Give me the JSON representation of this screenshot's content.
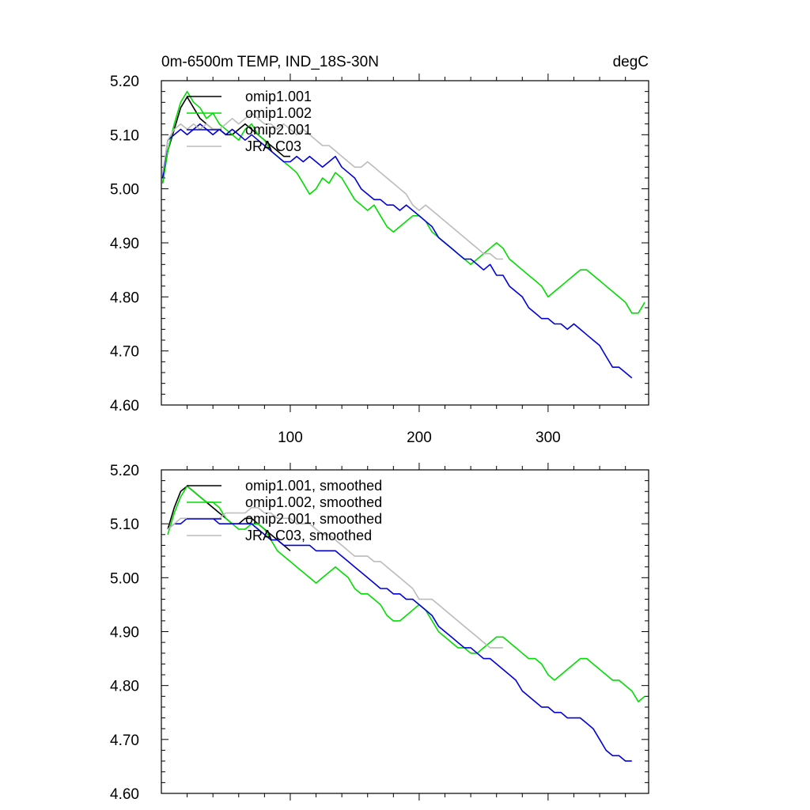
{
  "title": "0m-6500m TEMP, IND_18S-30N",
  "units": "degC",
  "colors": {
    "omip1.001": "#000000",
    "omip1.002": "#00dd00",
    "omip2.001": "#0000dd",
    "JRA C03": "#bbbbbb"
  },
  "chart_data": [
    {
      "type": "line",
      "panel": "top",
      "title": "0m-6500m TEMP, IND_18S-30N",
      "units": "degC",
      "xlim": [
        0,
        378
      ],
      "ylim": [
        4.6,
        5.2
      ],
      "xticks": [
        100,
        200,
        300
      ],
      "xtick_labels": [
        "100",
        "200",
        "300"
      ],
      "yticks": [
        4.6,
        4.7,
        4.8,
        4.9,
        5.0,
        5.1,
        5.2
      ],
      "ytick_labels": [
        "4.60",
        "4.70",
        "4.80",
        "4.90",
        "5.00",
        "5.10",
        "5.20"
      ],
      "legend_position": "top-left",
      "legend": [
        "omip1.001",
        "omip1.002",
        "omip2.001",
        "JRA C03"
      ],
      "series": [
        {
          "name": "omip1.001",
          "color": "#000000",
          "x": [
            1,
            5,
            10,
            15,
            20,
            25,
            30,
            35,
            40,
            45,
            50,
            55,
            60,
            65,
            70,
            75,
            80,
            85,
            90,
            95,
            100
          ],
          "values": [
            5.01,
            5.07,
            5.11,
            5.15,
            5.17,
            5.15,
            5.13,
            5.12,
            5.11,
            5.11,
            5.1,
            5.1,
            5.11,
            5.12,
            5.11,
            5.1,
            5.09,
            5.08,
            5.07,
            5.06,
            5.06
          ]
        },
        {
          "name": "omip1.002",
          "color": "#00dd00",
          "x": [
            1,
            5,
            10,
            15,
            20,
            25,
            30,
            35,
            40,
            45,
            50,
            55,
            60,
            65,
            70,
            75,
            80,
            85,
            90,
            95,
            100,
            105,
            110,
            115,
            120,
            125,
            130,
            135,
            140,
            145,
            150,
            155,
            160,
            165,
            170,
            175,
            180,
            185,
            190,
            195,
            200,
            205,
            210,
            215,
            220,
            225,
            230,
            235,
            240,
            245,
            250,
            255,
            260,
            265,
            270,
            275,
            280,
            285,
            290,
            295,
            300,
            305,
            310,
            315,
            320,
            325,
            330,
            335,
            340,
            345,
            350,
            355,
            360,
            365,
            370,
            375
          ],
          "values": [
            5.01,
            5.07,
            5.12,
            5.16,
            5.18,
            5.16,
            5.15,
            5.13,
            5.14,
            5.12,
            5.11,
            5.1,
            5.09,
            5.11,
            5.12,
            5.1,
            5.09,
            5.07,
            5.06,
            5.05,
            5.04,
            5.03,
            5.01,
            4.99,
            5.0,
            5.02,
            5.01,
            5.03,
            5.02,
            5.0,
            4.98,
            4.97,
            4.96,
            4.97,
            4.95,
            4.93,
            4.92,
            4.93,
            4.94,
            4.95,
            4.95,
            4.94,
            4.92,
            4.91,
            4.9,
            4.89,
            4.88,
            4.87,
            4.86,
            4.87,
            4.88,
            4.89,
            4.9,
            4.89,
            4.87,
            4.86,
            4.85,
            4.84,
            4.83,
            4.82,
            4.8,
            4.81,
            4.82,
            4.83,
            4.84,
            4.85,
            4.85,
            4.84,
            4.83,
            4.82,
            4.81,
            4.8,
            4.79,
            4.77,
            4.77,
            4.79
          ]
        },
        {
          "name": "omip2.001",
          "color": "#0000dd",
          "x": [
            1,
            5,
            10,
            15,
            20,
            25,
            30,
            35,
            40,
            45,
            50,
            55,
            60,
            65,
            70,
            75,
            80,
            85,
            90,
            95,
            100,
            105,
            110,
            115,
            120,
            125,
            130,
            135,
            140,
            145,
            150,
            155,
            160,
            165,
            170,
            175,
            180,
            185,
            190,
            195,
            200,
            205,
            210,
            215,
            220,
            225,
            230,
            235,
            240,
            245,
            250,
            255,
            260,
            265,
            270,
            275,
            280,
            285,
            290,
            295,
            300,
            305,
            310,
            315,
            320,
            325,
            330,
            335,
            340,
            345,
            350,
            355,
            360,
            365
          ],
          "values": [
            5.02,
            5.09,
            5.1,
            5.11,
            5.1,
            5.11,
            5.12,
            5.11,
            5.1,
            5.11,
            5.1,
            5.11,
            5.1,
            5.09,
            5.1,
            5.09,
            5.08,
            5.07,
            5.06,
            5.05,
            5.05,
            5.06,
            5.05,
            5.06,
            5.05,
            5.04,
            5.05,
            5.06,
            5.04,
            5.03,
            5.02,
            5.0,
            4.99,
            4.98,
            4.98,
            4.97,
            4.97,
            4.96,
            4.97,
            4.96,
            4.95,
            4.94,
            4.93,
            4.91,
            4.9,
            4.89,
            4.88,
            4.87,
            4.87,
            4.86,
            4.85,
            4.86,
            4.84,
            4.84,
            4.82,
            4.81,
            4.8,
            4.78,
            4.77,
            4.76,
            4.76,
            4.75,
            4.75,
            4.74,
            4.75,
            4.74,
            4.73,
            4.72,
            4.71,
            4.69,
            4.67,
            4.67,
            4.66,
            4.65
          ]
        },
        {
          "name": "JRA C03",
          "color": "#bbbbbb",
          "x": [
            1,
            5,
            10,
            15,
            20,
            25,
            30,
            35,
            40,
            45,
            50,
            55,
            60,
            65,
            70,
            75,
            80,
            85,
            90,
            95,
            100,
            105,
            110,
            115,
            120,
            125,
            130,
            135,
            140,
            145,
            150,
            155,
            160,
            165,
            170,
            175,
            180,
            185,
            190,
            195,
            200,
            205,
            210,
            215,
            220,
            225,
            230,
            235,
            240,
            245,
            250,
            255,
            260,
            265
          ],
          "values": [
            5.03,
            5.09,
            5.11,
            5.12,
            5.11,
            5.12,
            5.11,
            5.12,
            5.11,
            5.11,
            5.12,
            5.13,
            5.12,
            5.13,
            5.14,
            5.13,
            5.12,
            5.12,
            5.11,
            5.12,
            5.11,
            5.1,
            5.11,
            5.1,
            5.09,
            5.08,
            5.08,
            5.07,
            5.06,
            5.05,
            5.04,
            5.04,
            5.05,
            5.04,
            5.03,
            5.02,
            5.01,
            5.0,
            4.99,
            4.97,
            4.96,
            4.97,
            4.96,
            4.95,
            4.94,
            4.93,
            4.92,
            4.91,
            4.9,
            4.89,
            4.88,
            4.88,
            4.87,
            4.87
          ]
        }
      ]
    },
    {
      "type": "line",
      "panel": "bottom",
      "xlim": [
        0,
        378
      ],
      "ylim": [
        4.6,
        5.2
      ],
      "xticks": [
        100,
        200,
        300
      ],
      "yticks": [
        4.6,
        4.7,
        4.8,
        4.9,
        5.0,
        5.1,
        5.2
      ],
      "ytick_labels": [
        "4.60",
        "4.70",
        "4.80",
        "4.90",
        "5.00",
        "5.10",
        "5.20"
      ],
      "legend_position": "top-left",
      "legend": [
        "omip1.001, smoothed",
        "omip1.002, smoothed",
        "omip2.001, smoothed",
        "JRA C03, smoothed"
      ],
      "series": [
        {
          "name": "omip1.001, smoothed",
          "color": "#000000",
          "x": [
            5,
            10,
            15,
            20,
            25,
            30,
            35,
            40,
            45,
            50,
            55,
            60,
            65,
            70,
            75,
            80,
            85,
            90,
            95,
            100
          ],
          "values": [
            5.09,
            5.13,
            5.16,
            5.17,
            5.16,
            5.15,
            5.14,
            5.13,
            5.12,
            5.11,
            5.1,
            5.1,
            5.11,
            5.11,
            5.1,
            5.09,
            5.08,
            5.07,
            5.06,
            5.05
          ]
        },
        {
          "name": "omip1.002, smoothed",
          "color": "#00dd00",
          "x": [
            5,
            10,
            15,
            20,
            25,
            30,
            35,
            40,
            45,
            50,
            55,
            60,
            65,
            70,
            75,
            80,
            85,
            90,
            95,
            100,
            105,
            110,
            115,
            120,
            125,
            130,
            135,
            140,
            145,
            150,
            155,
            160,
            165,
            170,
            175,
            180,
            185,
            190,
            195,
            200,
            205,
            210,
            215,
            220,
            225,
            230,
            235,
            240,
            245,
            250,
            255,
            260,
            265,
            270,
            275,
            280,
            285,
            290,
            295,
            300,
            305,
            310,
            315,
            320,
            325,
            330,
            335,
            340,
            345,
            350,
            355,
            360,
            365,
            370,
            375
          ],
          "values": [
            5.08,
            5.12,
            5.15,
            5.17,
            5.16,
            5.15,
            5.14,
            5.14,
            5.13,
            5.11,
            5.1,
            5.09,
            5.09,
            5.1,
            5.1,
            5.09,
            5.07,
            5.05,
            5.04,
            5.03,
            5.02,
            5.01,
            5.0,
            4.99,
            5.0,
            5.01,
            5.02,
            5.01,
            5.0,
            4.98,
            4.97,
            4.97,
            4.96,
            4.95,
            4.93,
            4.92,
            4.92,
            4.93,
            4.94,
            4.95,
            4.94,
            4.92,
            4.9,
            4.89,
            4.88,
            4.87,
            4.87,
            4.86,
            4.86,
            4.87,
            4.88,
            4.89,
            4.89,
            4.88,
            4.87,
            4.86,
            4.85,
            4.85,
            4.84,
            4.82,
            4.81,
            4.82,
            4.83,
            4.84,
            4.85,
            4.85,
            4.84,
            4.83,
            4.82,
            4.81,
            4.81,
            4.8,
            4.79,
            4.77,
            4.78
          ]
        },
        {
          "name": "omip2.001, smoothed",
          "color": "#0000dd",
          "x": [
            5,
            10,
            15,
            20,
            25,
            30,
            35,
            40,
            45,
            50,
            55,
            60,
            65,
            70,
            75,
            80,
            85,
            90,
            95,
            100,
            105,
            110,
            115,
            120,
            125,
            130,
            135,
            140,
            145,
            150,
            155,
            160,
            165,
            170,
            175,
            180,
            185,
            190,
            195,
            200,
            205,
            210,
            215,
            220,
            225,
            230,
            235,
            240,
            245,
            250,
            255,
            260,
            265,
            270,
            275,
            280,
            285,
            290,
            295,
            300,
            305,
            310,
            315,
            320,
            325,
            330,
            335,
            340,
            345,
            350,
            355,
            360,
            365
          ],
          "values": [
            5.09,
            5.1,
            5.1,
            5.11,
            5.11,
            5.11,
            5.11,
            5.11,
            5.1,
            5.1,
            5.1,
            5.1,
            5.1,
            5.1,
            5.09,
            5.08,
            5.07,
            5.07,
            5.06,
            5.06,
            5.06,
            5.06,
            5.06,
            5.05,
            5.05,
            5.05,
            5.05,
            5.04,
            5.03,
            5.02,
            5.01,
            5.0,
            4.99,
            4.98,
            4.98,
            4.97,
            4.97,
            4.96,
            4.96,
            4.95,
            4.94,
            4.93,
            4.91,
            4.9,
            4.89,
            4.88,
            4.87,
            4.87,
            4.86,
            4.85,
            4.85,
            4.84,
            4.83,
            4.82,
            4.81,
            4.79,
            4.78,
            4.77,
            4.76,
            4.76,
            4.75,
            4.75,
            4.74,
            4.74,
            4.74,
            4.73,
            4.72,
            4.7,
            4.68,
            4.67,
            4.67,
            4.66,
            4.66
          ]
        },
        {
          "name": "JRA C03, smoothed",
          "color": "#bbbbbb",
          "x": [
            5,
            10,
            15,
            20,
            25,
            30,
            35,
            40,
            45,
            50,
            55,
            60,
            65,
            70,
            75,
            80,
            85,
            90,
            95,
            100,
            105,
            110,
            115,
            120,
            125,
            130,
            135,
            140,
            145,
            150,
            155,
            160,
            165,
            170,
            175,
            180,
            185,
            190,
            195,
            200,
            205,
            210,
            215,
            220,
            225,
            230,
            235,
            240,
            245,
            250,
            255,
            260,
            265
          ],
          "values": [
            5.09,
            5.1,
            5.11,
            5.11,
            5.11,
            5.11,
            5.11,
            5.11,
            5.11,
            5.12,
            5.12,
            5.12,
            5.12,
            5.13,
            5.13,
            5.12,
            5.12,
            5.11,
            5.11,
            5.11,
            5.1,
            5.1,
            5.1,
            5.09,
            5.08,
            5.08,
            5.07,
            5.06,
            5.05,
            5.04,
            5.04,
            5.04,
            5.03,
            5.03,
            5.02,
            5.01,
            5.0,
            4.99,
            4.98,
            4.96,
            4.96,
            4.96,
            4.95,
            4.94,
            4.93,
            4.92,
            4.91,
            4.9,
            4.89,
            4.88,
            4.87,
            4.87,
            4.87
          ]
        }
      ]
    }
  ]
}
